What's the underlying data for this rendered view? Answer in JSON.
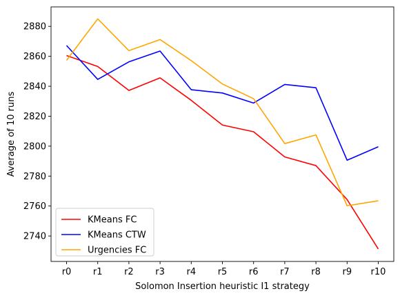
{
  "chart_data": {
    "type": "line",
    "title": "",
    "xlabel": "Solomon Insertion heuristic I1 strategy",
    "ylabel": "Average of 10 runs",
    "categories": [
      "r0",
      "r1",
      "r2",
      "r3",
      "r4",
      "r5",
      "r6",
      "r7",
      "r8",
      "r9",
      "r10"
    ],
    "ylim": [
      2723,
      2893
    ],
    "yticks": [
      2740,
      2760,
      2780,
      2800,
      2820,
      2840,
      2860,
      2880
    ],
    "grid": false,
    "legend_position": "lower-left",
    "series": [
      {
        "name": "KMeans FC",
        "color": "#ff0000",
        "values": [
          2860.5,
          2853.2,
          2837.2,
          2845.6,
          2830.6,
          2814.1,
          2809.6,
          2792.8,
          2787.0,
          2764.3,
          2731.3
        ]
      },
      {
        "name": "KMeans CTW",
        "color": "#0000ff",
        "values": [
          2867.2,
          2844.6,
          2856.3,
          2863.5,
          2837.7,
          2835.5,
          2828.8,
          2841.2,
          2839.0,
          2790.6,
          2799.6
        ]
      },
      {
        "name": "Urgencies FC",
        "color": "#ffa500",
        "values": [
          2857.3,
          2885.0,
          2863.8,
          2871.2,
          2857.1,
          2841.5,
          2831.7,
          2801.7,
          2807.5,
          2760.2,
          2763.5
        ]
      }
    ]
  }
}
